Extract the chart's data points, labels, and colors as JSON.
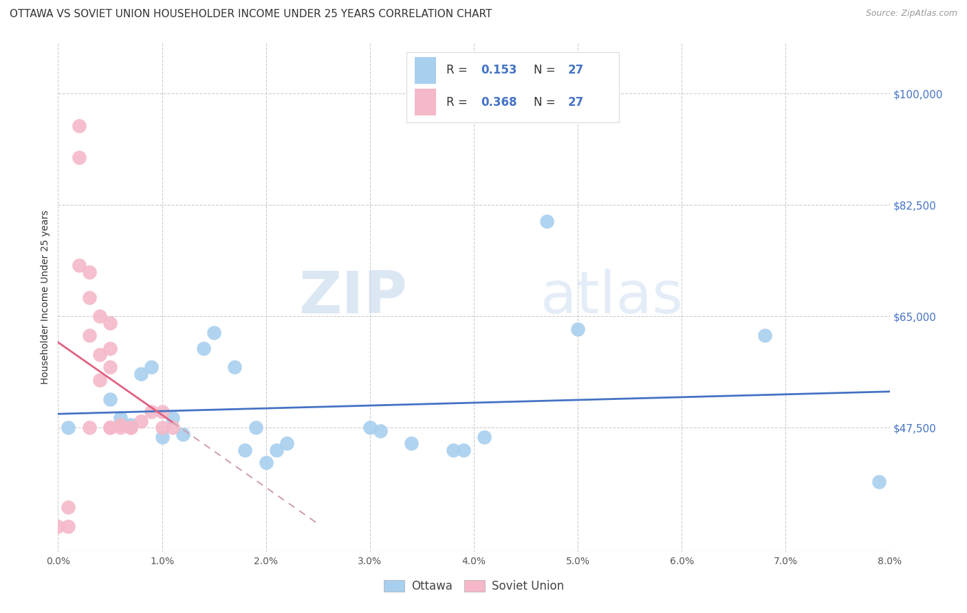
{
  "title": "OTTAWA VS SOVIET UNION HOUSEHOLDER INCOME UNDER 25 YEARS CORRELATION CHART",
  "source": "Source: ZipAtlas.com",
  "ylabel": "Householder Income Under 25 years",
  "xlabel_ticks": [
    "0.0%",
    "1.0%",
    "2.0%",
    "3.0%",
    "4.0%",
    "5.0%",
    "6.0%",
    "7.0%",
    "8.0%"
  ],
  "ytick_labels": [
    "$47,500",
    "$65,000",
    "$82,500",
    "$100,000"
  ],
  "ytick_values": [
    47500,
    65000,
    82500,
    100000
  ],
  "xlim": [
    0.0,
    0.08
  ],
  "ylim": [
    28000,
    108000
  ],
  "watermark_zip": "ZIP",
  "watermark_atlas": "atlas",
  "ottawa_x": [
    0.001,
    0.005,
    0.006,
    0.007,
    0.008,
    0.009,
    0.01,
    0.011,
    0.012,
    0.014,
    0.015,
    0.017,
    0.018,
    0.019,
    0.02,
    0.021,
    0.022,
    0.03,
    0.031,
    0.034,
    0.038,
    0.039,
    0.041,
    0.047,
    0.05,
    0.068,
    0.079
  ],
  "ottawa_y": [
    47500,
    52000,
    49000,
    48000,
    56000,
    57000,
    46000,
    49000,
    46500,
    60000,
    62500,
    57000,
    44000,
    47500,
    42000,
    44000,
    45000,
    47500,
    47000,
    45000,
    44000,
    44000,
    46000,
    80000,
    63000,
    62000,
    39000
  ],
  "soviet_x": [
    0.0,
    0.001,
    0.001,
    0.002,
    0.002,
    0.002,
    0.003,
    0.003,
    0.003,
    0.003,
    0.004,
    0.004,
    0.004,
    0.005,
    0.005,
    0.005,
    0.005,
    0.005,
    0.006,
    0.006,
    0.007,
    0.007,
    0.008,
    0.009,
    0.01,
    0.01,
    0.011
  ],
  "soviet_y": [
    32000,
    32000,
    35000,
    73000,
    90000,
    95000,
    62000,
    68000,
    72000,
    47500,
    55000,
    59000,
    65000,
    57000,
    60000,
    64000,
    47500,
    47500,
    47500,
    48000,
    47500,
    47500,
    48500,
    50000,
    50000,
    47500,
    47500
  ],
  "ottawa_R": "0.153",
  "ottawa_N": "27",
  "soviet_R": "0.368",
  "soviet_N": "27",
  "ottawa_color": "#A8CFEE",
  "soviet_color": "#F4B8C8",
  "ottawa_line_color": "#4472C4",
  "soviet_line_color": "#E06080",
  "soviet_dash_color": "#D0A0B0",
  "title_fontsize": 11,
  "axis_label_fontsize": 10,
  "tick_fontsize": 10,
  "legend_fontsize": 12,
  "source_fontsize": 9
}
